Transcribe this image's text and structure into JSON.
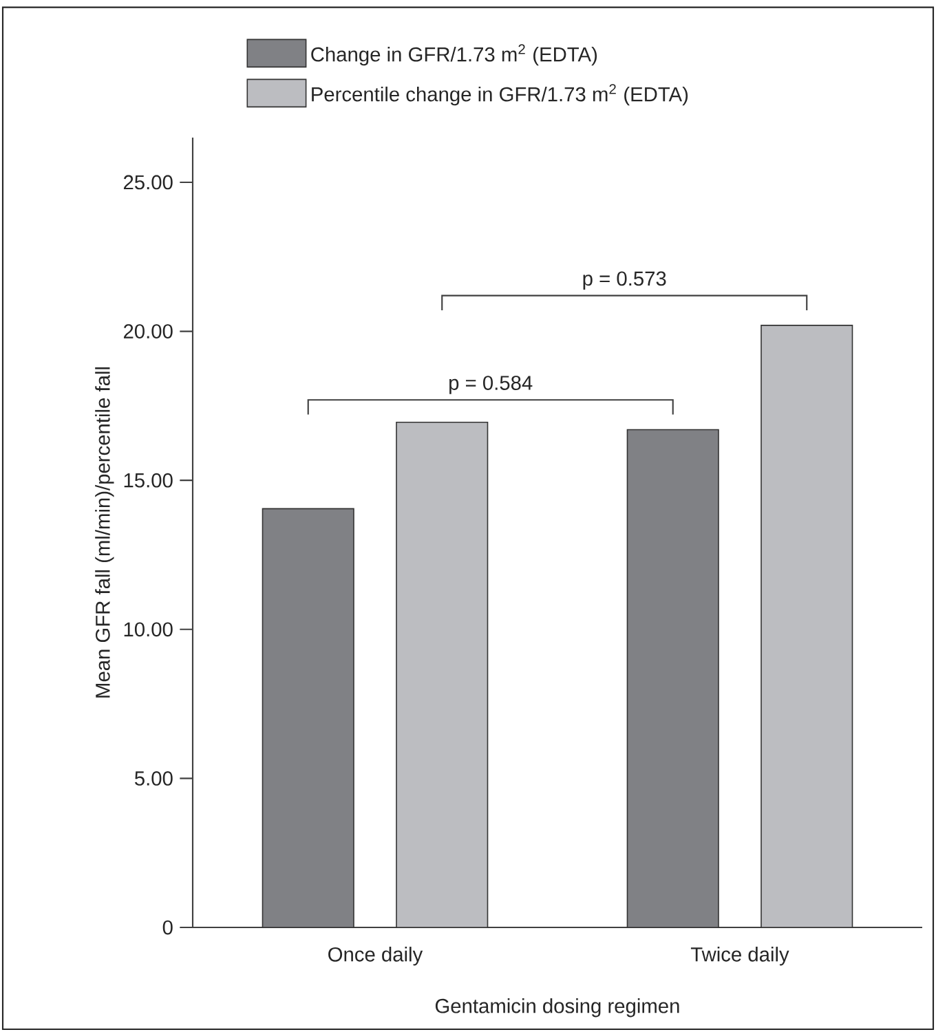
{
  "chart_data": {
    "type": "bar",
    "xlabel": "Gentamicin dosing regimen",
    "ylabel": "Mean GFR fall (ml/min)/percentile fall",
    "categories": [
      "Once daily",
      "Twice daily"
    ],
    "series": [
      {
        "name": "Change in GFR/1.73 m$^{2}$ (EDTA)",
        "color": "#808185",
        "values": [
          14.05,
          16.7
        ]
      },
      {
        "name": "Percentile change in GFR/1.73 m$^{2}$ (EDTA)",
        "color": "#bcbdc1",
        "values": [
          16.95,
          20.2
        ]
      }
    ],
    "ylim": [
      0,
      26.5
    ],
    "yticks": [
      0,
      {
        "value": 5,
        "label": "5.00"
      },
      {
        "value": 10,
        "label": "10.00"
      },
      {
        "value": 15,
        "label": "15.00"
      },
      {
        "value": 20,
        "label": "20.00"
      },
      {
        "value": 25,
        "label": "25.00"
      }
    ],
    "annotations": [
      "p = 0.584",
      "p = 0.573"
    ],
    "grid": false,
    "legend": "top"
  }
}
